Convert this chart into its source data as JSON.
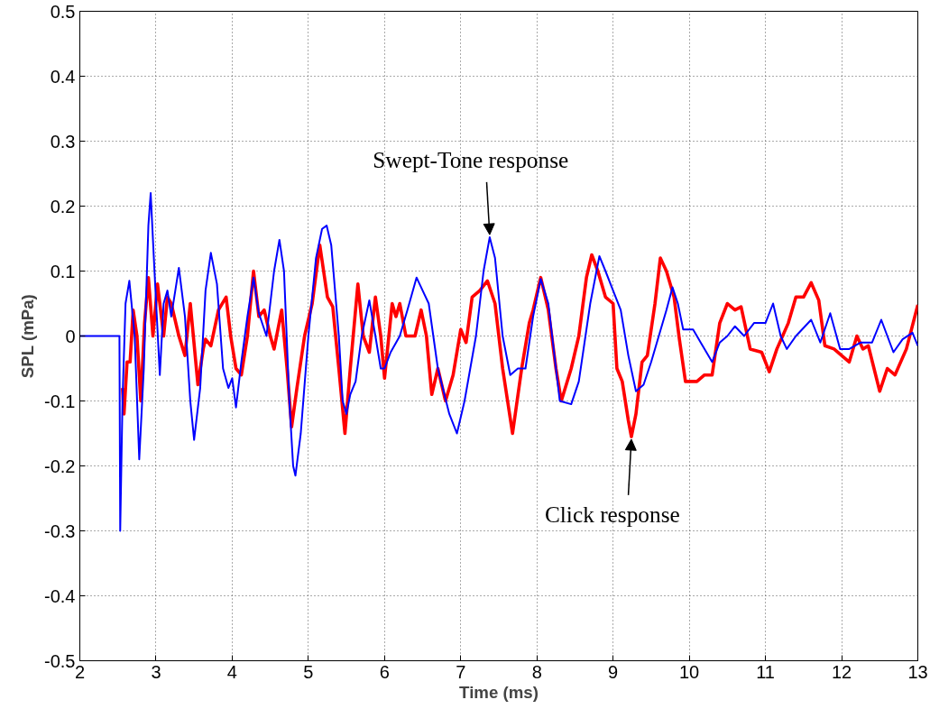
{
  "chart_data": {
    "type": "line",
    "xlabel": "Time (ms)",
    "ylabel": "SPL (mPa)",
    "xlim": [
      2,
      13
    ],
    "ylim": [
      -0.5,
      0.5
    ],
    "xticks": [
      2,
      3,
      4,
      5,
      6,
      7,
      8,
      9,
      10,
      11,
      12,
      13
    ],
    "yticks": [
      -0.5,
      -0.4,
      -0.3,
      -0.2,
      -0.1,
      0,
      0.1,
      0.2,
      0.3,
      0.4,
      0.5
    ],
    "grid": true,
    "line_style": "solid",
    "marker": "none",
    "annotations": [
      {
        "text": "Swept-Tone response",
        "x": 7.38,
        "y": 0.152
      },
      {
        "text": "Click response",
        "x": 9.24,
        "y": -0.155
      }
    ],
    "series": [
      {
        "color": "#ff0000",
        "x": [
          2.56,
          2.58,
          2.62,
          2.66,
          2.7,
          2.75,
          2.8,
          2.85,
          2.9,
          2.96,
          3.02,
          3.1,
          3.15,
          3.2,
          3.3,
          3.38,
          3.45,
          3.55,
          3.62,
          3.65,
          3.72,
          3.82,
          3.92,
          3.98,
          4.05,
          4.12,
          4.2,
          4.28,
          4.35,
          4.42,
          4.5,
          4.55,
          4.65,
          4.72,
          4.78,
          4.85,
          4.95,
          5.05,
          5.15,
          5.25,
          5.32,
          5.4,
          5.48,
          5.55,
          5.65,
          5.72,
          5.8,
          5.88,
          5.95,
          6.0,
          6.1,
          6.15,
          6.2,
          6.28,
          6.4,
          6.48,
          6.55,
          6.62,
          6.7,
          6.8,
          6.9,
          7.0,
          7.07,
          7.15,
          7.25,
          7.35,
          7.45,
          7.55,
          7.68,
          7.8,
          7.9,
          7.95,
          8.05,
          8.15,
          8.25,
          8.32,
          8.45,
          8.55,
          8.65,
          8.72,
          8.8,
          8.9,
          9.0,
          9.05,
          9.12,
          9.2,
          9.24,
          9.3,
          9.38,
          9.45,
          9.55,
          9.62,
          9.7,
          9.8,
          9.87,
          9.95,
          10.1,
          10.2,
          10.3,
          10.4,
          10.5,
          10.6,
          10.68,
          10.8,
          10.95,
          11.05,
          11.15,
          11.3,
          11.4,
          11.5,
          11.6,
          11.7,
          11.78,
          11.9,
          12.0,
          12.1,
          12.2,
          12.28,
          12.35,
          12.5,
          12.6,
          12.7,
          12.85,
          13.0
        ],
        "values": [
          -0.08,
          -0.12,
          -0.04,
          -0.04,
          0.04,
          0.0,
          -0.1,
          0.02,
          0.09,
          0.0,
          0.08,
          0.0,
          0.06,
          0.05,
          0.0,
          -0.03,
          0.05,
          -0.075,
          -0.02,
          -0.005,
          -0.015,
          0.04,
          0.06,
          0.0,
          -0.05,
          -0.06,
          0.0,
          0.1,
          0.03,
          0.04,
          0.0,
          -0.02,
          0.04,
          -0.05,
          -0.14,
          -0.08,
          0.0,
          0.05,
          0.14,
          0.06,
          0.045,
          -0.05,
          -0.15,
          -0.05,
          0.08,
          0.0,
          -0.025,
          0.06,
          0.0,
          -0.065,
          0.05,
          0.03,
          0.05,
          0.0,
          0.0,
          0.04,
          0.0,
          -0.09,
          -0.05,
          -0.1,
          -0.06,
          0.01,
          -0.01,
          0.06,
          0.07,
          0.085,
          0.05,
          -0.05,
          -0.15,
          -0.05,
          0.02,
          0.04,
          0.09,
          0.04,
          -0.05,
          -0.1,
          -0.05,
          0.0,
          0.09,
          0.125,
          0.1,
          0.06,
          0.05,
          -0.05,
          -0.07,
          -0.13,
          -0.155,
          -0.12,
          -0.04,
          -0.03,
          0.05,
          0.12,
          0.1,
          0.06,
          -0.005,
          -0.07,
          -0.07,
          -0.06,
          -0.06,
          0.02,
          0.05,
          0.04,
          0.045,
          -0.02,
          -0.025,
          -0.055,
          -0.02,
          0.02,
          0.06,
          0.06,
          0.082,
          0.055,
          -0.015,
          -0.02,
          -0.03,
          -0.04,
          0.0,
          -0.02,
          -0.015,
          -0.085,
          -0.05,
          -0.06,
          -0.02,
          0.048
        ]
      },
      {
        "color": "#0000ff",
        "x": [
          2.0,
          2.52,
          2.53,
          2.56,
          2.6,
          2.65,
          2.72,
          2.78,
          2.84,
          2.9,
          2.93,
          2.98,
          3.05,
          3.1,
          3.15,
          3.2,
          3.3,
          3.38,
          3.45,
          3.5,
          3.58,
          3.65,
          3.72,
          3.8,
          3.88,
          3.95,
          4.0,
          4.05,
          4.12,
          4.2,
          4.28,
          4.35,
          4.45,
          4.55,
          4.62,
          4.68,
          4.75,
          4.8,
          4.83,
          4.9,
          5.0,
          5.1,
          5.18,
          5.24,
          5.3,
          5.4,
          5.45,
          5.5,
          5.55,
          5.62,
          5.7,
          5.8,
          5.88,
          5.95,
          6.0,
          6.08,
          6.2,
          6.3,
          6.42,
          6.5,
          6.58,
          6.7,
          6.85,
          6.95,
          7.05,
          7.2,
          7.3,
          7.38,
          7.45,
          7.55,
          7.65,
          7.75,
          7.85,
          7.95,
          8.05,
          8.15,
          8.3,
          8.45,
          8.55,
          8.7,
          8.82,
          8.9,
          9.0,
          9.1,
          9.2,
          9.3,
          9.4,
          9.5,
          9.6,
          9.7,
          9.78,
          9.85,
          9.92,
          10.05,
          10.15,
          10.3,
          10.4,
          10.5,
          10.6,
          10.72,
          10.85,
          11.0,
          11.1,
          11.2,
          11.28,
          11.4,
          11.6,
          11.72,
          11.85,
          11.98,
          12.1,
          12.25,
          12.4,
          12.52,
          12.6,
          12.68,
          12.8,
          12.93,
          13.0
        ],
        "values": [
          0.0,
          0.0,
          -0.3,
          -0.1,
          0.05,
          0.085,
          0.0,
          -0.19,
          -0.05,
          0.17,
          0.22,
          0.1,
          -0.06,
          0.05,
          0.07,
          0.03,
          0.105,
          0.03,
          -0.1,
          -0.16,
          -0.08,
          0.07,
          0.128,
          0.08,
          -0.05,
          -0.08,
          -0.065,
          -0.11,
          -0.04,
          0.03,
          0.09,
          0.035,
          0.0,
          0.1,
          0.148,
          0.1,
          -0.1,
          -0.2,
          -0.215,
          -0.15,
          0.0,
          0.12,
          0.165,
          0.17,
          0.14,
          0.0,
          -0.1,
          -0.12,
          -0.09,
          -0.07,
          0.0,
          0.055,
          0.0,
          -0.05,
          -0.05,
          -0.025,
          0.0,
          0.04,
          0.09,
          0.07,
          0.05,
          -0.05,
          -0.12,
          -0.15,
          -0.1,
          0.0,
          0.1,
          0.152,
          0.12,
          0.0,
          -0.06,
          -0.05,
          -0.05,
          0.03,
          0.088,
          0.05,
          -0.1,
          -0.105,
          -0.07,
          0.05,
          0.123,
          0.1,
          0.07,
          0.04,
          -0.03,
          -0.085,
          -0.075,
          -0.04,
          0.0,
          0.04,
          0.075,
          0.05,
          0.01,
          0.01,
          -0.01,
          -0.04,
          -0.01,
          0.0,
          0.015,
          0.0,
          0.02,
          0.02,
          0.05,
          0.0,
          -0.02,
          0.0,
          0.025,
          -0.01,
          0.035,
          -0.02,
          -0.02,
          -0.01,
          -0.01,
          0.025,
          0.0,
          -0.025,
          -0.005,
          0.005,
          -0.015
        ]
      }
    ]
  }
}
